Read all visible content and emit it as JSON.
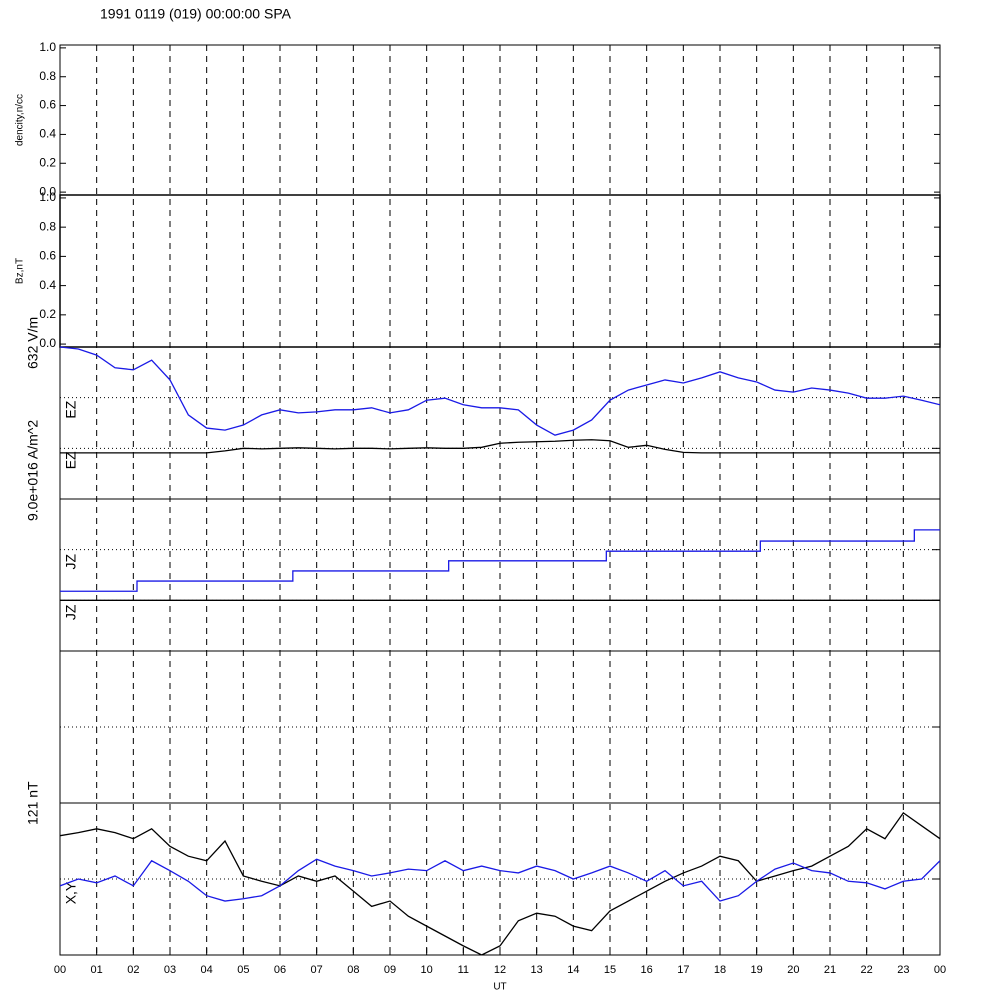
{
  "chart_data": {
    "type": "line",
    "title": "1991 0119 (019) 00:00:00 SPA",
    "xlabel": "UT",
    "xlim": [
      0,
      24
    ],
    "xticks": [
      {
        "value": 0,
        "label": "00"
      },
      {
        "value": 1,
        "label": "01"
      },
      {
        "value": 2,
        "label": "02"
      },
      {
        "value": 3,
        "label": "03"
      },
      {
        "value": 4,
        "label": "04"
      },
      {
        "value": 5,
        "label": "05"
      },
      {
        "value": 6,
        "label": "06"
      },
      {
        "value": 7,
        "label": "07"
      },
      {
        "value": 8,
        "label": "08"
      },
      {
        "value": 9,
        "label": "09"
      },
      {
        "value": 10,
        "label": "10"
      },
      {
        "value": 11,
        "label": "11"
      },
      {
        "value": 12,
        "label": "12"
      },
      {
        "value": 13,
        "label": "13"
      },
      {
        "value": 14,
        "label": "14"
      },
      {
        "value": 15,
        "label": "15"
      },
      {
        "value": 16,
        "label": "16"
      },
      {
        "value": 17,
        "label": "17"
      },
      {
        "value": 18,
        "label": "18"
      },
      {
        "value": 19,
        "label": "19"
      },
      {
        "value": 20,
        "label": "20"
      },
      {
        "value": 21,
        "label": "21"
      },
      {
        "value": 22,
        "label": "22"
      },
      {
        "value": 23,
        "label": "23"
      },
      {
        "value": 24,
        "label": "00"
      }
    ],
    "x": [
      0,
      0.5,
      1,
      1.5,
      2,
      2.5,
      3,
      3.5,
      4,
      4.5,
      5,
      5.5,
      6,
      6.5,
      7,
      7.5,
      8,
      8.5,
      9,
      9.5,
      10,
      10.5,
      11,
      11.5,
      12,
      12.5,
      13,
      13.5,
      14,
      14.5,
      15,
      15.5,
      16,
      16.5,
      17,
      17.5,
      18,
      18.5,
      19,
      19.5,
      20,
      20.5,
      21,
      21.5,
      22,
      22.5,
      23,
      23.5,
      24
    ],
    "panels": [
      {
        "ylabel": "dencity,n/cc",
        "ylim": [
          -0.02,
          1.02
        ],
        "yticks": [
          {
            "value": 0,
            "label": "0.0"
          },
          0.2,
          0.4,
          0.6,
          0.8,
          {
            "value": 1,
            "label": "1.0"
          }
        ],
        "series": []
      },
      {
        "ylabel": "Bz,nT",
        "ylim": [
          -0.02,
          1.02
        ],
        "yticks": [
          {
            "value": 0,
            "label": "0.0"
          },
          0.2,
          0.4,
          0.6,
          0.8,
          {
            "value": 1,
            "label": "1.0"
          }
        ],
        "series": []
      },
      {
        "unit_label": "632 V/m",
        "ylim": [
          0,
          3
        ],
        "dotted": [
          2,
          1
        ],
        "series": [
          {
            "name": "EZ",
            "color": "#1a1ae6",
            "values": [
              3.0,
              2.96,
              2.84,
              2.59,
              2.55,
              2.74,
              2.35,
              1.66,
              1.4,
              1.36,
              1.46,
              1.66,
              1.76,
              1.7,
              1.72,
              1.76,
              1.76,
              1.8,
              1.7,
              1.76,
              1.95,
              1.99,
              1.86,
              1.8,
              1.8,
              1.76,
              1.46,
              1.26,
              1.36,
              1.56,
              1.95,
              2.15,
              2.25,
              2.35,
              2.29,
              2.39,
              2.51,
              2.39,
              2.31,
              2.15,
              2.11,
              2.19,
              2.15,
              2.09,
              1.99,
              1.99,
              2.03,
              1.95,
              1.86
            ]
          },
          {
            "name": "EZ",
            "color": "#000000",
            "values": [
              0.91,
              0.91,
              0.91,
              0.91,
              0.91,
              0.91,
              0.91,
              0.91,
              0.91,
              0.95,
              1.0,
              0.99,
              1.0,
              1.01,
              1.0,
              0.99,
              1.0,
              1.0,
              0.99,
              1.0,
              1.01,
              1.0,
              1.0,
              1.02,
              1.1,
              1.12,
              1.13,
              1.14,
              1.16,
              1.17,
              1.15,
              1.02,
              1.06,
              0.98,
              0.92,
              0.91,
              0.91,
              0.91,
              0.91,
              0.91,
              0.91,
              0.91,
              0.91,
              0.91,
              0.91,
              0.91,
              0.91,
              0.91,
              0.91
            ]
          }
        ]
      },
      {
        "unit_label": "9.0e+016 A/m^2",
        "ylim": [
          0,
          3
        ],
        "dotted": [
          2,
          1
        ],
        "step": true,
        "series": [
          {
            "name": "JZ",
            "color": "#1a1ae6",
            "x": [
              0,
              2.1,
              6.35,
              10.6,
              14.9,
              19.1,
              23.3,
              24
            ],
            "values": [
              1.18,
              1.38,
              1.58,
              1.78,
              1.97,
              2.17,
              2.39,
              2.39
            ]
          },
          {
            "name": "JZ",
            "color": "#000000",
            "x": [
              0,
              24
            ],
            "values": [
              1,
              1
            ]
          }
        ]
      },
      {
        "ylim": [
          -1,
          1
        ],
        "dotted": [
          0
        ],
        "series": []
      },
      {
        "unit_label": "121 nT",
        "series_label": "X,Y",
        "ylim": [
          -1,
          1
        ],
        "dotted": [
          0
        ],
        "series": [
          {
            "color": "#000000",
            "values": [
              0.57,
              0.61,
              0.66,
              0.61,
              0.53,
              0.66,
              0.43,
              0.3,
              0.24,
              0.5,
              0.04,
              -0.03,
              -0.09,
              0.04,
              -0.03,
              0.04,
              -0.16,
              -0.36,
              -0.29,
              -0.49,
              -0.62,
              -0.75,
              -0.88,
              -1.0,
              -0.88,
              -0.55,
              -0.45,
              -0.49,
              -0.62,
              -0.68,
              -0.42,
              -0.29,
              -0.16,
              -0.03,
              0.08,
              0.17,
              0.3,
              0.24,
              -0.03,
              0.04,
              0.11,
              0.17,
              0.3,
              0.43,
              0.66,
              0.53,
              0.87,
              0.7,
              0.53
            ]
          },
          {
            "color": "#1a1ae6",
            "values": [
              -0.09,
              0,
              -0.05,
              0.04,
              -0.09,
              0.24,
              0.11,
              -0.03,
              -0.22,
              -0.29,
              -0.26,
              -0.22,
              -0.09,
              0.11,
              0.26,
              0.17,
              0.11,
              0.04,
              0.08,
              0.13,
              0.11,
              0.24,
              0.11,
              0.17,
              0.11,
              0.08,
              0.17,
              0.11,
              0,
              0.08,
              0.17,
              0.08,
              -0.03,
              0.11,
              -0.09,
              -0.03,
              -0.29,
              -0.22,
              -0.03,
              0.13,
              0.21,
              0.11,
              0.08,
              -0.03,
              -0.05,
              -0.13,
              -0.03,
              0,
              0.24
            ]
          }
        ]
      }
    ]
  }
}
